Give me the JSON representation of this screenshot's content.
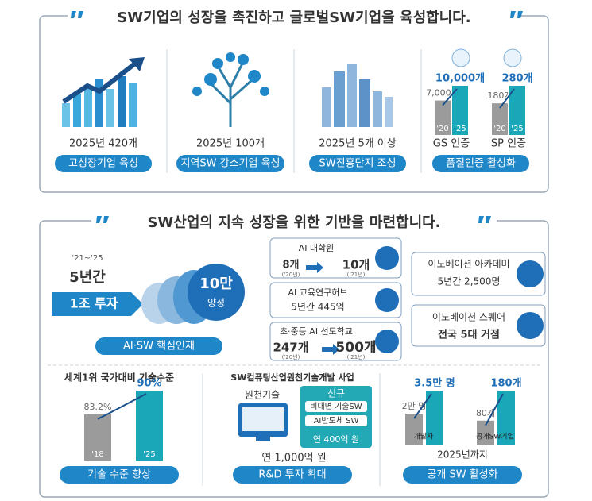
{
  "section1": {
    "title": "SW기업의 성장을 촉진하고 글로벌SW기업을 육성합니다.",
    "items": [
      {
        "caption": "2025년 420개",
        "button": "고성장기업 육성"
      },
      {
        "caption": "2025년 100개",
        "button": "지역SW 강소기업 육성"
      },
      {
        "caption": "2025년 5개 이상",
        "button": "SW진흥단지 조성"
      },
      {
        "button": "품질인증 활성화",
        "charts": [
          {
            "caption": "GS 인증",
            "categories": [
              "'20",
              "'25"
            ],
            "values": [
              7000,
              10000
            ],
            "value_labels": [
              "7,000개",
              "10,000개"
            ],
            "ylim": [
              0,
              10000
            ]
          },
          {
            "caption": "SP 인증",
            "categories": [
              "'20",
              "'25"
            ],
            "values": [
              180,
              280
            ],
            "value_labels": [
              "180개",
              "280개"
            ],
            "ylim": [
              0,
              280
            ]
          }
        ]
      }
    ]
  },
  "section2": {
    "title": "SW산업의 지속 성장을 위한 기반을 마련합니다.",
    "talent": {
      "period": "'21~'25",
      "duration": "5년간",
      "investment": "1조 투자",
      "goal": "10만",
      "goal_suffix": "양성",
      "button": "AI·SW 핵심인재"
    },
    "programs": [
      {
        "name": "AI 대학원",
        "from": "8개",
        "to": "10개",
        "from_year": "('20년)",
        "to_year": "('21년)"
      },
      {
        "name": "AI 교육연구허브",
        "detail": "5년간 445억"
      },
      {
        "name": "초·중등 AI 선도학교",
        "from": "247개",
        "to": "500개",
        "from_year": "('20년)",
        "to_year": "('21년)"
      }
    ],
    "academies": [
      {
        "name": "이노베이션 아카데미",
        "detail": "5년간 2,500명"
      },
      {
        "name": "이노베이션 스퀘어",
        "detail": "전국 5대 거점"
      }
    ],
    "tech": {
      "title": "세계1위 국가대비 기술수준",
      "categories": [
        "'18",
        "'25"
      ],
      "values": [
        83.2,
        90
      ],
      "value_labels": [
        "83.2%",
        "90%"
      ],
      "ylim": [
        70,
        90
      ],
      "button": "기술 수준 향상"
    },
    "rnd": {
      "title": "SW컴퓨팅산업원천기술개발 사업",
      "left": "원천기술",
      "new": "신규",
      "items": [
        "비대면 기술SW",
        "AI반도체 SW"
      ],
      "new_budget": "연 400억 원",
      "total": "연 1,000억 원",
      "button": "R&D 투자 확대"
    },
    "oss": {
      "groups": [
        {
          "name": "개발자",
          "values": [
            20000,
            35000
          ],
          "value_labels": [
            "2만 명",
            "3.5만 명"
          ],
          "ylim": [
            0,
            35000
          ]
        },
        {
          "name": "공개SW기업",
          "values": [
            80,
            180
          ],
          "value_labels": [
            "80개",
            "180개"
          ],
          "ylim": [
            0,
            180
          ]
        }
      ],
      "period": "2025년까지",
      "button": "공개 SW 활성화"
    }
  }
}
